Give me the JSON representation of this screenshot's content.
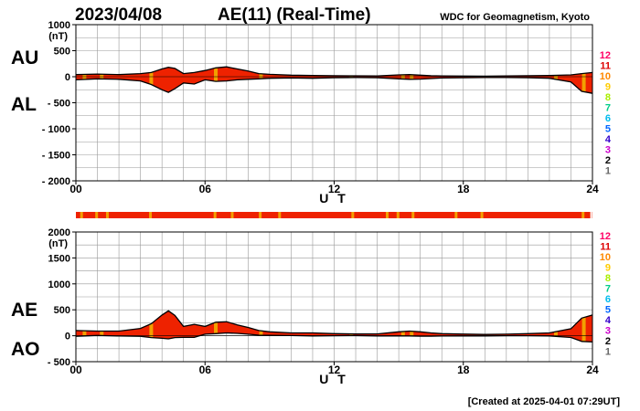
{
  "header": {
    "date": "2023/04/08",
    "title": "AE(11) (Real-Time)",
    "source": "WDC for Geomagnetism, Kyoto"
  },
  "footer": {
    "created": "[Created at 2025-04-01 07:29UT]"
  },
  "colors": {
    "fill_primary": "#ee2200",
    "fill_secondary": "#f2a000",
    "outline": "#000000",
    "grid": "#999999",
    "count_scale": [
      "#ff0066",
      "#dd0000",
      "#ff8800",
      "#ffcc00",
      "#aaee00",
      "#00cc88",
      "#00bbee",
      "#0066ff",
      "#3300cc",
      "#cc00cc",
      "#000000",
      "#666666",
      "#cccccc"
    ]
  },
  "station_count_scale": [
    "12",
    "11",
    "10",
    "9",
    "8",
    "7",
    "6",
    "5",
    "4",
    "3",
    "2",
    "1"
  ],
  "chart_data": [
    {
      "type": "area",
      "labels": [
        "AU",
        "AL"
      ],
      "ylabel": "(nT)",
      "xlabel": "U T",
      "ylim": [
        -2000,
        1000
      ],
      "yticks": [
        1000,
        500,
        0,
        -500,
        -1000,
        -1500,
        -2000
      ],
      "ytick_labels": [
        "1000",
        "500",
        "0",
        "- 500",
        "- 1000",
        "- 1500",
        "- 2000"
      ],
      "xlim": [
        0,
        24
      ],
      "xticks": [
        0,
        6,
        12,
        18,
        24
      ],
      "xtick_labels": [
        "00",
        "06",
        "12",
        "18",
        "24"
      ],
      "grid": true,
      "x": [
        0,
        1,
        2,
        3,
        3.5,
        4,
        4.3,
        4.6,
        5,
        5.5,
        6,
        6.5,
        7,
        7.5,
        8,
        8.5,
        9,
        10,
        11,
        12,
        13,
        14,
        15,
        15.5,
        16,
        16.5,
        17,
        18,
        19,
        20,
        21,
        22,
        23,
        23.5,
        24
      ],
      "series": [
        {
          "name": "AU",
          "values": [
            40,
            50,
            40,
            60,
            80,
            150,
            180,
            160,
            60,
            80,
            120,
            170,
            190,
            150,
            110,
            60,
            45,
            30,
            25,
            20,
            18,
            15,
            35,
            40,
            30,
            20,
            15,
            12,
            10,
            15,
            20,
            25,
            35,
            60,
            80
          ]
        },
        {
          "name": "AL",
          "values": [
            -60,
            -40,
            -50,
            -80,
            -150,
            -250,
            -300,
            -230,
            -120,
            -140,
            -60,
            -90,
            -80,
            -60,
            -50,
            -40,
            -30,
            -25,
            -30,
            -20,
            -15,
            -20,
            -40,
            -50,
            -45,
            -35,
            -25,
            -20,
            -15,
            -15,
            -20,
            -30,
            -100,
            -280,
            -320
          ]
        }
      ]
    },
    {
      "type": "area",
      "labels": [
        "AE",
        "AO"
      ],
      "ylabel": "(nT)",
      "xlabel": "U T",
      "ylim": [
        -500,
        2000
      ],
      "yticks": [
        2000,
        1500,
        1000,
        500,
        0,
        -500
      ],
      "ytick_labels": [
        "2000",
        "1500",
        "1000",
        "500",
        "0",
        "- 500"
      ],
      "xlim": [
        0,
        24
      ],
      "xticks": [
        0,
        6,
        12,
        18,
        24
      ],
      "xtick_labels": [
        "00",
        "06",
        "12",
        "18",
        "24"
      ],
      "grid": true,
      "x": [
        0,
        1,
        2,
        3,
        3.5,
        4,
        4.3,
        4.6,
        5,
        5.5,
        6,
        6.5,
        7,
        7.5,
        8,
        8.5,
        9,
        10,
        11,
        12,
        13,
        14,
        15,
        15.5,
        16,
        16.5,
        17,
        18,
        19,
        20,
        21,
        22,
        23,
        23.5,
        24
      ],
      "series": [
        {
          "name": "AE",
          "values": [
            100,
            90,
            90,
            140,
            230,
            400,
            480,
            390,
            180,
            220,
            180,
            260,
            270,
            210,
            160,
            100,
            75,
            55,
            55,
            40,
            33,
            35,
            75,
            90,
            75,
            55,
            40,
            32,
            25,
            30,
            40,
            55,
            135,
            340,
            400
          ]
        },
        {
          "name": "AO",
          "values": [
            -10,
            5,
            -5,
            -10,
            -35,
            -50,
            -60,
            -35,
            -30,
            -30,
            30,
            40,
            55,
            45,
            30,
            10,
            8,
            3,
            -3,
            0,
            2,
            -3,
            -3,
            -5,
            -8,
            -8,
            -5,
            -4,
            -3,
            0,
            0,
            -3,
            -33,
            -110,
            -120
          ]
        }
      ]
    }
  ]
}
